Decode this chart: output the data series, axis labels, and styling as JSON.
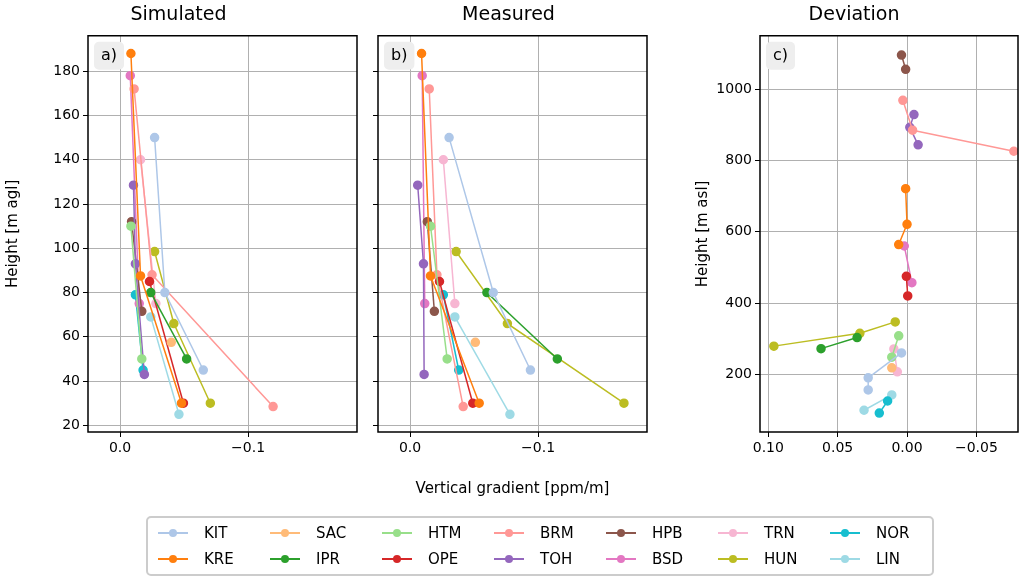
{
  "chart_data": [
    {
      "type": "line",
      "title": "Simulated",
      "ylabel": "Height [m agl]",
      "annotations": [
        "a)"
      ],
      "xlim": [
        0.025,
        -0.185
      ],
      "xticks": [
        {
          "value": 0,
          "label": "0.0"
        },
        {
          "value": -0.1,
          "label": "−0.1"
        }
      ],
      "ylim": [
        17,
        196
      ],
      "yticks": [
        20,
        40,
        60,
        80,
        100,
        120,
        140,
        160,
        180
      ],
      "grid": true,
      "marker": "circle",
      "series": [
        {
          "color": "#aec7e8",
          "x": [
            -0.027,
            -0.035,
            -0.065
          ],
          "values": [
            150,
            80,
            45
          ]
        },
        {
          "color": "#ff7f0e",
          "x": [
            -0.0085,
            -0.016,
            -0.048
          ],
          "values": [
            188,
            87.5,
            30
          ]
        },
        {
          "color": "#ffbb78",
          "x": [
            -0.04
          ],
          "values": [
            57.5
          ]
        },
        {
          "color": "#2ca02c",
          "x": [
            -0.024,
            -0.052
          ],
          "values": [
            80,
            50
          ]
        },
        {
          "color": "#98df8a",
          "x": [
            -0.0085,
            -0.017
          ],
          "values": [
            110,
            50
          ]
        },
        {
          "color": "#d62728",
          "x": [
            -0.023,
            -0.0495
          ],
          "values": [
            85,
            30
          ]
        },
        {
          "color": "#ff9896",
          "x": [
            -0.011,
            -0.025,
            -0.1195
          ],
          "values": [
            172,
            88,
            28.5
          ]
        },
        {
          "color": "#9467bd",
          "x": [
            -0.0105,
            -0.012,
            -0.019
          ],
          "values": [
            128.5,
            93,
            43
          ]
        },
        {
          "color": "#8c564b",
          "x": [
            -0.009,
            -0.017
          ],
          "values": [
            112,
            71.5
          ]
        },
        {
          "color": "#e377c2",
          "x": [
            -0.008,
            -0.015
          ],
          "values": [
            178,
            75
          ]
        },
        {
          "color": "#f7b6d2",
          "x": [
            -0.016,
            -0.028
          ],
          "values": [
            140,
            75
          ]
        },
        {
          "color": "#bcbd22",
          "x": [
            -0.027,
            -0.042,
            -0.0705
          ],
          "values": [
            98.5,
            66,
            30
          ]
        },
        {
          "color": "#17becf",
          "x": [
            -0.012,
            -0.018
          ],
          "values": [
            79,
            45
          ]
        },
        {
          "color": "#9edae5",
          "x": [
            -0.024,
            -0.046
          ],
          "values": [
            69,
            25
          ]
        }
      ]
    },
    {
      "type": "line",
      "title": "Measured",
      "xlabel": "Vertical gradient [ppm/m]",
      "annotations": [
        "b)"
      ],
      "xlim": [
        0.025,
        -0.185
      ],
      "xticks": [
        {
          "value": 0,
          "label": "0.0"
        },
        {
          "value": -0.1,
          "label": "−0.1"
        }
      ],
      "ylim": [
        17,
        196
      ],
      "yticks": [
        20,
        40,
        60,
        80,
        100,
        120,
        140,
        160,
        180
      ],
      "tick_labels": "x",
      "grid": true,
      "marker": "circle",
      "legend": "bottom",
      "series": [
        {
          "name": "KIT",
          "color": "#aec7e8",
          "x": [
            -0.0305,
            -0.065,
            -0.094
          ],
          "values": [
            150,
            80,
            45
          ]
        },
        {
          "name": "KRE",
          "color": "#ff7f0e",
          "x": [
            -0.009,
            -0.016,
            -0.054
          ],
          "values": [
            188,
            87.5,
            30
          ]
        },
        {
          "name": "SAC",
          "color": "#ffbb78",
          "x": [
            -0.051
          ],
          "values": [
            57.5
          ]
        },
        {
          "name": "IPR",
          "color": "#2ca02c",
          "x": [
            -0.06,
            -0.115
          ],
          "values": [
            80,
            50
          ]
        },
        {
          "name": "HTM",
          "color": "#98df8a",
          "x": [
            -0.016,
            -0.029
          ],
          "values": [
            110,
            50
          ]
        },
        {
          "name": "OPE",
          "color": "#d62728",
          "x": [
            -0.023,
            -0.049
          ],
          "values": [
            85,
            30
          ]
        },
        {
          "name": "BRM",
          "color": "#ff9896",
          "x": [
            -0.015,
            -0.021,
            -0.0415
          ],
          "values": [
            172,
            88,
            28.5
          ]
        },
        {
          "name": "TOH",
          "color": "#9467bd",
          "x": [
            -0.006,
            -0.0105,
            -0.011
          ],
          "values": [
            128.5,
            93,
            43
          ]
        },
        {
          "name": "HPB",
          "color": "#8c564b",
          "x": [
            -0.0135,
            -0.019
          ],
          "values": [
            112,
            71.5
          ]
        },
        {
          "name": "BSD",
          "color": "#e377c2",
          "x": [
            -0.0095,
            -0.0115
          ],
          "values": [
            178,
            75
          ]
        },
        {
          "name": "TRN",
          "color": "#f7b6d2",
          "x": [
            -0.026,
            -0.035
          ],
          "values": [
            140,
            75
          ]
        },
        {
          "name": "HUN",
          "color": "#bcbd22",
          "x": [
            -0.036,
            -0.076,
            -0.167
          ],
          "values": [
            98.5,
            66,
            30
          ]
        },
        {
          "name": "NOR",
          "color": "#17becf",
          "x": [
            -0.026,
            -0.038
          ],
          "values": [
            79,
            45
          ]
        },
        {
          "name": "LIN",
          "color": "#9edae5",
          "x": [
            -0.035,
            -0.078
          ],
          "values": [
            69,
            25
          ]
        }
      ]
    },
    {
      "type": "line",
      "title": "Deviation",
      "ylabel": "Height [m asl]",
      "annotations": [
        "c)"
      ],
      "xlim": [
        0.106,
        -0.08
      ],
      "xticks": [
        {
          "value": 0.1,
          "label": "0.10"
        },
        {
          "value": 0.05,
          "label": "0.05"
        },
        {
          "value": 0,
          "label": "0.00"
        },
        {
          "value": -0.05,
          "label": "−0.05"
        }
      ],
      "ylim": [
        38,
        1150
      ],
      "yticks": [
        200,
        400,
        600,
        800,
        1000
      ],
      "grid": true,
      "marker": "circle",
      "series": [
        {
          "color": "#aec7e8",
          "x": [
            0.004,
            0.028,
            0.028
          ],
          "values": [
            260,
            190,
            156
          ]
        },
        {
          "color": "#ff7f0e",
          "x": [
            0.001,
            0,
            0.006
          ],
          "values": [
            721,
            621,
            564
          ]
        },
        {
          "color": "#ffbb78",
          "x": [
            0.011
          ],
          "values": [
            218
          ]
        },
        {
          "color": "#2ca02c",
          "x": [
            0.036,
            0.062
          ],
          "values": [
            303,
            272
          ]
        },
        {
          "color": "#98df8a",
          "x": [
            0.006,
            0.011
          ],
          "values": [
            308,
            248
          ]
        },
        {
          "color": "#d62728",
          "x": [
            0.0005,
            -0.0005
          ],
          "values": [
            475,
            420
          ]
        },
        {
          "color": "#ff9896",
          "x": [
            0.003,
            -0.004,
            -0.077
          ],
          "values": [
            969,
            885,
            826
          ]
        },
        {
          "color": "#9467bd",
          "x": [
            -0.005,
            -0.002,
            -0.008
          ],
          "values": [
            929,
            893,
            844
          ]
        },
        {
          "color": "#8c564b",
          "x": [
            0.004,
            0.001
          ],
          "values": [
            1096,
            1056
          ]
        },
        {
          "color": "#e377c2",
          "x": [
            0.002,
            -0.0035
          ],
          "values": [
            560,
            457
          ]
        },
        {
          "color": "#f7b6d2",
          "x": [
            0.0095,
            0.007
          ],
          "values": [
            271,
            207
          ]
        },
        {
          "color": "#bcbd22",
          "x": [
            0.0085,
            0.034,
            0.096
          ],
          "values": [
            347,
            315,
            279
          ]
        },
        {
          "color": "#17becf",
          "x": [
            0.014,
            0.02
          ],
          "values": [
            125,
            91
          ]
        },
        {
          "color": "#9edae5",
          "x": [
            0.011,
            0.031
          ],
          "values": [
            142,
            99
          ]
        }
      ]
    }
  ]
}
